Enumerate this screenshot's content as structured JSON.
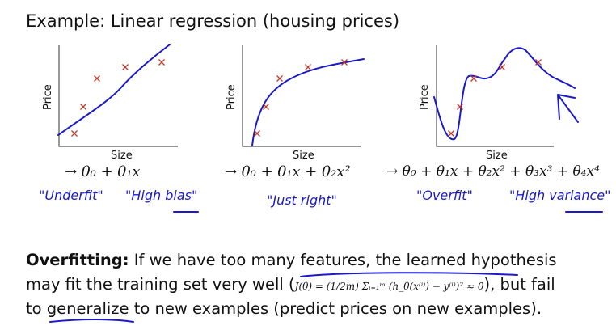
{
  "title": "Example: Linear regression (housing prices)",
  "plots": [
    {
      "ylabel": "Price",
      "xlabel": "Size",
      "formula": "→ θ₀ + θ₁x",
      "notes": [
        "\"Underfit\"",
        "\"High bias\""
      ]
    },
    {
      "ylabel": "Price",
      "xlabel": "Size",
      "formula": "→ θ₀ + θ₁x + θ₂x²",
      "notes": [
        "\"Just right\""
      ]
    },
    {
      "ylabel": "Price",
      "xlabel": "Size",
      "formula": "→ θ₀ + θ₁x + θ₂x² + θ₃x³ + θ₄x⁴",
      "notes": [
        "\"Overfit\"",
        "\"High variance\""
      ]
    }
  ],
  "colors": {
    "data_points": "#c0392b",
    "fit_curve": "#1a1ac8",
    "ink": "#1a1ac8"
  },
  "body": {
    "heading": "Overfitting:",
    "line1": " If we have too many features, the learned hypothesis",
    "line2a": "may fit the training set very well (",
    "cost": "J(θ) = (1/2m) Σᵢ₌₁ᵐ (h_θ(x⁽ⁱ⁾) − y⁽ⁱ⁾)² ≈ 0",
    "line2b": "), but fail",
    "line3": "to generalize to new examples (predict prices on new examples)."
  }
}
